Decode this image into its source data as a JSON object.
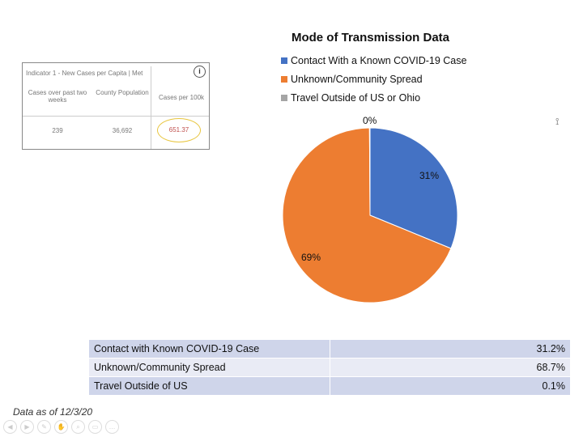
{
  "indicator": {
    "title": "Indicator 1 - New Cases per Capita | Met",
    "col1": "Cases over past two weeks",
    "col2": "County Population",
    "col3": "Cases per 100k",
    "cases": "239",
    "population": "36,692",
    "per100k": "651.37",
    "info_icon": "info-icon"
  },
  "chart_data": {
    "type": "pie",
    "title": "Mode of Transmission Data",
    "categories": [
      "Contact With a Known COVID-19 Case",
      "Unknown/Community Spread",
      "Travel Outside of US or Ohio"
    ],
    "values": [
      31.2,
      68.7,
      0.1
    ],
    "data_labels": [
      "31%",
      "69%",
      "0%"
    ],
    "colors": [
      "#4472c4",
      "#ed7d31",
      "#a5a5a5"
    ],
    "legend": "top"
  },
  "table": [
    {
      "label": "Contact with Known COVID-19 Case",
      "value": "31.2%"
    },
    {
      "label": "Unknown/Community Spread",
      "value": "68.7%"
    },
    {
      "label": "Travel Outside of US",
      "value": "0.1%"
    }
  ],
  "footer": {
    "as_of": "Data as of 12/3/20"
  }
}
